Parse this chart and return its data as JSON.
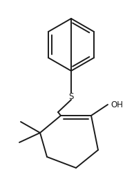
{
  "background_color": "#ffffff",
  "line_color": "#1a1a1a",
  "line_width": 1.4,
  "figsize": [
    1.94,
    2.66
  ],
  "dpi": 100,
  "S_label": "S",
  "OH_label": "OH",
  "S_fontsize": 8.5,
  "OH_fontsize": 8.5
}
